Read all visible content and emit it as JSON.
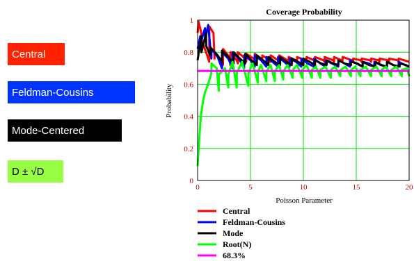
{
  "labels": {
    "central": "Central",
    "fc": "Feldman-Cousins",
    "mode": "Mode-Centered",
    "root": "D ± √D"
  },
  "chart_data": {
    "type": "line",
    "title": "Coverage Probability",
    "xlabel": "Poisson Parameter",
    "ylabel": "Probability",
    "xlim": [
      0,
      20
    ],
    "ylim": [
      0,
      1
    ],
    "xticks": [
      0,
      5,
      10,
      15,
      20
    ],
    "yticks": [
      0,
      0.2,
      0.4,
      0.6,
      0.8,
      1
    ],
    "ytick_labels": [
      "0",
      "0.2",
      "0.4",
      "0.6",
      "0.8",
      "1"
    ],
    "grid": true,
    "legend_position": "bottom",
    "series": [
      {
        "name": "Central",
        "color": "#ff0000",
        "x": [
          0,
          0.1,
          0.35,
          0.36,
          0.9,
          1.1,
          1.11,
          1.5,
          1.6,
          1.61,
          2.3,
          2.4,
          2.41,
          3.0,
          3.1,
          3.11,
          3.7,
          3.8,
          3.81,
          4.5,
          4.6,
          4.61,
          5.3,
          5.4,
          5.41,
          6.0,
          6.1,
          6.11,
          6.8,
          6.9,
          6.91,
          7.6,
          7.7,
          7.71,
          8.5,
          8.6,
          8.61,
          9.3,
          9.4,
          9.41,
          10.2,
          10.3,
          10.31,
          11.0,
          11.1,
          11.11,
          11.9,
          12.0,
          12.01,
          12.8,
          12.9,
          12.91,
          13.6,
          13.7,
          13.71,
          14.6,
          14.7,
          14.71,
          15.4,
          15.5,
          15.51,
          16.3,
          16.4,
          16.41,
          17.1,
          17.2,
          17.21,
          18.0,
          18.1,
          18.11,
          18.9,
          19.0,
          19.01,
          20.0
        ],
        "y": [
          0.92,
          0.99,
          0.92,
          0.88,
          0.78,
          0.74,
          0.96,
          0.92,
          0.76,
          0.8,
          0.73,
          0.72,
          0.82,
          0.77,
          0.72,
          0.8,
          0.75,
          0.73,
          0.8,
          0.76,
          0.74,
          0.79,
          0.76,
          0.74,
          0.79,
          0.76,
          0.74,
          0.78,
          0.75,
          0.74,
          0.78,
          0.75,
          0.74,
          0.78,
          0.75,
          0.74,
          0.77,
          0.75,
          0.74,
          0.77,
          0.75,
          0.74,
          0.77,
          0.75,
          0.74,
          0.77,
          0.75,
          0.74,
          0.77,
          0.75,
          0.74,
          0.77,
          0.75,
          0.74,
          0.77,
          0.75,
          0.74,
          0.76,
          0.75,
          0.74,
          0.76,
          0.75,
          0.74,
          0.76,
          0.75,
          0.74,
          0.76,
          0.75,
          0.74,
          0.76,
          0.75,
          0.74,
          0.76,
          0.74
        ]
      },
      {
        "name": "Feldman-Cousins",
        "color": "#0000ff",
        "x": [
          0,
          0.25,
          0.26,
          0.7,
          0.71,
          1.0,
          1.3,
          1.31,
          1.9,
          2.3,
          2.31,
          2.9,
          3.3,
          3.31,
          3.9,
          4.4,
          4.41,
          5.0,
          5.4,
          5.41,
          6.0,
          6.5,
          6.51,
          7.1,
          7.6,
          7.61,
          8.2,
          8.7,
          8.71,
          9.3,
          9.8,
          9.81,
          10.4,
          11.0,
          11.01,
          11.6,
          12.1,
          12.11,
          12.7,
          13.3,
          13.31,
          13.9,
          14.4,
          14.41,
          15.0,
          15.6,
          15.61,
          16.2,
          16.7,
          16.71,
          17.3,
          17.9,
          17.91,
          18.5,
          19.0,
          19.01,
          19.6,
          20.0
        ],
        "y": [
          0.82,
          0.9,
          0.85,
          0.95,
          0.88,
          0.97,
          0.76,
          0.82,
          0.77,
          0.7,
          0.8,
          0.76,
          0.7,
          0.8,
          0.76,
          0.7,
          0.78,
          0.75,
          0.71,
          0.78,
          0.75,
          0.71,
          0.77,
          0.74,
          0.71,
          0.77,
          0.74,
          0.71,
          0.76,
          0.74,
          0.71,
          0.76,
          0.73,
          0.71,
          0.76,
          0.73,
          0.71,
          0.75,
          0.73,
          0.71,
          0.75,
          0.73,
          0.71,
          0.75,
          0.73,
          0.71,
          0.74,
          0.73,
          0.71,
          0.74,
          0.72,
          0.71,
          0.74,
          0.72,
          0.71,
          0.74,
          0.72,
          0.71
        ]
      },
      {
        "name": "Mode",
        "color": "#000000",
        "x": [
          0,
          0.35,
          0.36,
          0.8,
          0.81,
          1.2,
          1.21,
          1.9,
          2.3,
          2.31,
          2.9,
          3.4,
          3.41,
          4.0,
          4.5,
          4.51,
          5.1,
          5.6,
          5.61,
          6.2,
          6.7,
          6.71,
          7.3,
          7.8,
          7.81,
          8.4,
          8.9,
          8.91,
          9.5,
          10.0,
          10.01,
          10.6,
          11.1,
          11.11,
          11.7,
          12.2,
          12.21,
          12.8,
          13.3,
          13.31,
          13.9,
          14.5,
          14.51,
          15.1,
          15.6,
          15.61,
          16.2,
          16.8,
          16.81,
          17.4,
          17.9,
          17.91,
          18.5,
          19.1,
          19.11,
          19.7,
          20.0
        ],
        "y": [
          0.75,
          0.9,
          0.8,
          0.92,
          0.84,
          0.78,
          0.83,
          0.78,
          0.74,
          0.81,
          0.77,
          0.73,
          0.8,
          0.76,
          0.73,
          0.79,
          0.75,
          0.72,
          0.78,
          0.75,
          0.72,
          0.77,
          0.74,
          0.72,
          0.77,
          0.74,
          0.72,
          0.76,
          0.74,
          0.72,
          0.76,
          0.74,
          0.72,
          0.75,
          0.73,
          0.72,
          0.75,
          0.73,
          0.72,
          0.75,
          0.73,
          0.72,
          0.74,
          0.73,
          0.71,
          0.74,
          0.72,
          0.71,
          0.74,
          0.72,
          0.71,
          0.74,
          0.72,
          0.71,
          0.73,
          0.72,
          0.71
        ]
      },
      {
        "name": "Root(N)",
        "color": "#00ff00",
        "x": [
          0,
          0.15,
          0.3,
          0.5,
          0.7,
          1.0,
          1.3,
          1.31,
          1.8,
          2.0,
          2.01,
          2.6,
          2.9,
          2.91,
          3.3,
          3.7,
          3.71,
          4.2,
          4.8,
          4.81,
          5.2,
          5.7,
          5.71,
          6.0,
          6.5,
          6.51,
          6.9,
          7.3,
          7.31,
          7.7,
          8.1,
          8.11,
          8.5,
          9.0,
          9.01,
          9.4,
          9.9,
          9.91,
          10.3,
          10.8,
          10.81,
          11.2,
          11.6,
          11.61,
          12.1,
          12.6,
          12.61,
          13.0,
          13.5,
          13.51,
          14.0,
          14.5,
          14.51,
          14.9,
          15.4,
          15.41,
          15.9,
          16.4,
          16.41,
          16.9,
          17.4,
          17.41,
          17.8,
          18.3,
          18.31,
          18.8,
          19.3,
          19.31,
          19.8,
          20.0
        ],
        "y": [
          0.09,
          0.25,
          0.4,
          0.49,
          0.55,
          0.6,
          0.67,
          0.73,
          0.7,
          0.56,
          0.66,
          0.7,
          0.58,
          0.66,
          0.74,
          0.58,
          0.67,
          0.74,
          0.59,
          0.67,
          0.73,
          0.61,
          0.68,
          0.72,
          0.62,
          0.68,
          0.72,
          0.62,
          0.68,
          0.72,
          0.63,
          0.68,
          0.72,
          0.64,
          0.69,
          0.72,
          0.64,
          0.69,
          0.72,
          0.64,
          0.69,
          0.71,
          0.64,
          0.69,
          0.71,
          0.64,
          0.69,
          0.71,
          0.65,
          0.69,
          0.71,
          0.65,
          0.69,
          0.71,
          0.65,
          0.69,
          0.71,
          0.65,
          0.69,
          0.71,
          0.65,
          0.69,
          0.71,
          0.65,
          0.69,
          0.71,
          0.65,
          0.69,
          0.7,
          0.65
        ]
      },
      {
        "name": "68.3%",
        "color": "#ff00ff",
        "x": [
          0,
          20
        ],
        "y": [
          0.683,
          0.683
        ]
      }
    ]
  }
}
